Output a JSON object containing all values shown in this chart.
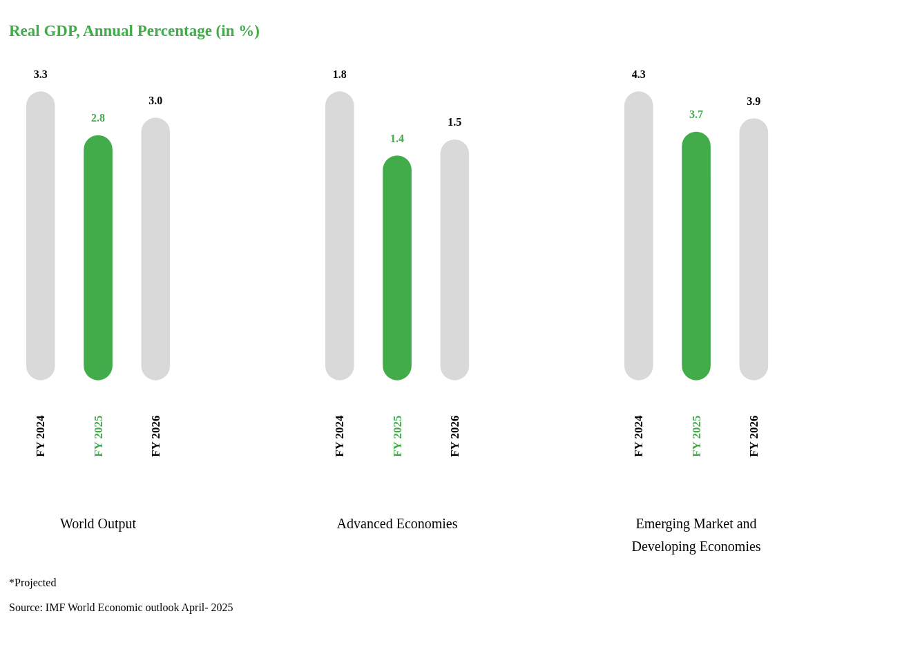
{
  "chart_data": [
    {
      "type": "bar",
      "title": "Real GDP, Annual Percentage (in %)",
      "xlabel": "World Output",
      "categories": [
        "FY 2024",
        "FY 2025",
        "FY 2026"
      ],
      "values": [
        3.3,
        2.8,
        3.0
      ],
      "colors": [
        "#d9d9d9",
        "#43ac4a",
        "#d9d9d9"
      ],
      "value_labels": [
        "3.3",
        "2.8",
        "3.0"
      ],
      "annotations": [
        "*Projected",
        "Source: IMF World Economic outlook April- 2025"
      ]
    },
    {
      "type": "bar",
      "xlabel": "Advanced Economies",
      "categories": [
        "FY 2024",
        "FY 2025",
        "FY 2026"
      ],
      "values": [
        1.8,
        1.4,
        1.5
      ],
      "colors": [
        "#d9d9d9",
        "#43ac4a",
        "#d9d9d9"
      ],
      "value_labels": [
        "1.8",
        "1.4",
        "1.5"
      ]
    },
    {
      "type": "bar",
      "xlabel": "Emerging Market and Developing Economies",
      "categories": [
        "FY 2024",
        "FY 2025",
        "FY 2026"
      ],
      "values": [
        4.3,
        3.7,
        3.9
      ],
      "colors": [
        "#d9d9d9",
        "#43ac4a",
        "#d9d9d9"
      ],
      "value_labels": [
        "4.3",
        "3.7",
        "3.9"
      ]
    }
  ]
}
